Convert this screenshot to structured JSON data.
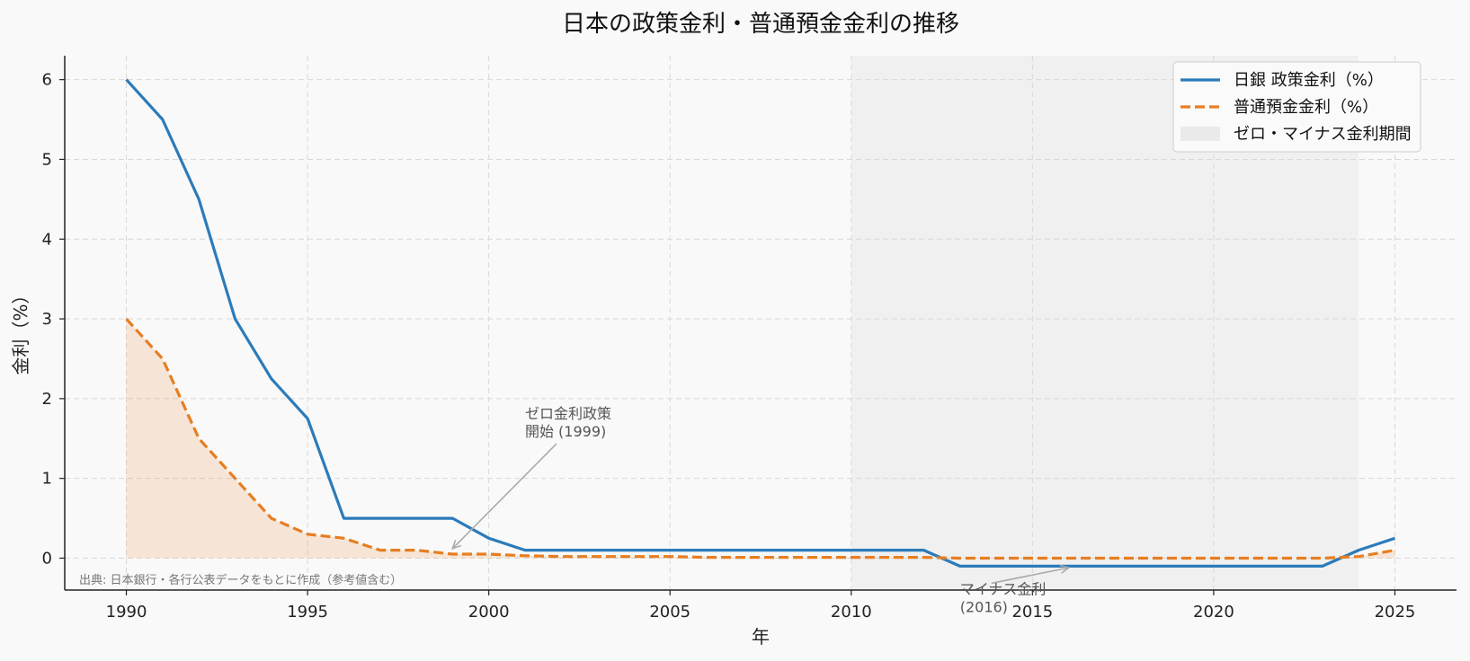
{
  "chart_data": {
    "type": "line",
    "title": "日本の政策金利・普通預金金利の推移",
    "xlabel": "年",
    "ylabel": "金利（%）",
    "xlim": [
      1988.3,
      2026.7
    ],
    "ylim": [
      -0.4,
      6.3
    ],
    "xticks": [
      1990,
      1995,
      2000,
      2005,
      2010,
      2015,
      2020,
      2025
    ],
    "yticks": [
      0,
      1,
      2,
      3,
      4,
      5,
      6
    ],
    "grid": true,
    "legend_position": "top-right",
    "series": [
      {
        "name": "日銀 政策金利（%）",
        "style": "solid",
        "color": "#2b7bba",
        "x": [
          1990,
          1991,
          1992,
          1993,
          1994,
          1995,
          1996,
          1997,
          1998,
          1999,
          2000,
          2001,
          2002,
          2003,
          2004,
          2005,
          2006,
          2007,
          2008,
          2009,
          2010,
          2011,
          2012,
          2013,
          2014,
          2015,
          2016,
          2017,
          2018,
          2019,
          2020,
          2021,
          2022,
          2023,
          2024,
          2025
        ],
        "values": [
          6.0,
          5.5,
          4.5,
          3.0,
          2.25,
          1.75,
          0.5,
          0.5,
          0.5,
          0.5,
          0.25,
          0.1,
          0.1,
          0.1,
          0.1,
          0.1,
          0.1,
          0.1,
          0.1,
          0.1,
          0.1,
          0.1,
          0.1,
          -0.1,
          -0.1,
          -0.1,
          -0.1,
          -0.1,
          -0.1,
          -0.1,
          -0.1,
          -0.1,
          -0.1,
          -0.1,
          0.1,
          0.25
        ]
      },
      {
        "name": "普通預金金利（%）",
        "style": "dashed",
        "color": "#e67e22",
        "fill": true,
        "x": [
          1990,
          1991,
          1992,
          1993,
          1994,
          1995,
          1996,
          1997,
          1998,
          1999,
          2000,
          2001,
          2002,
          2003,
          2004,
          2005,
          2006,
          2007,
          2008,
          2009,
          2010,
          2011,
          2012,
          2013,
          2014,
          2015,
          2016,
          2017,
          2018,
          2019,
          2020,
          2021,
          2022,
          2023,
          2024,
          2025
        ],
        "values": [
          3.0,
          2.5,
          1.5,
          1.0,
          0.5,
          0.3,
          0.25,
          0.1,
          0.1,
          0.05,
          0.05,
          0.03,
          0.02,
          0.02,
          0.02,
          0.02,
          0.01,
          0.01,
          0.01,
          0.01,
          0.01,
          0.01,
          0.01,
          0.0,
          0.0,
          0.0,
          0.0,
          0.0,
          0.0,
          0.0,
          0.0,
          0.0,
          0.0,
          0.0,
          0.02,
          0.1
        ]
      }
    ],
    "shaded_period": {
      "name": "ゼロ・マイナス金利期間",
      "x_start": 2010,
      "x_end": 2024,
      "color": "#e8e8e8"
    },
    "annotations": [
      {
        "text": [
          "ゼロ金利政策",
          "開始 (1999)"
        ],
        "text_x": 2001,
        "text_y": 1.75,
        "point_x": 1999,
        "point_y": 0.12
      },
      {
        "text": [
          "マイナス金利",
          "(2016)"
        ],
        "text_x": 2013,
        "text_y": -0.45,
        "point_x": 2016,
        "point_y": -0.12
      }
    ],
    "source_note": "出典: 日本銀行・各行公表データをもとに作成（参考値含む）"
  }
}
